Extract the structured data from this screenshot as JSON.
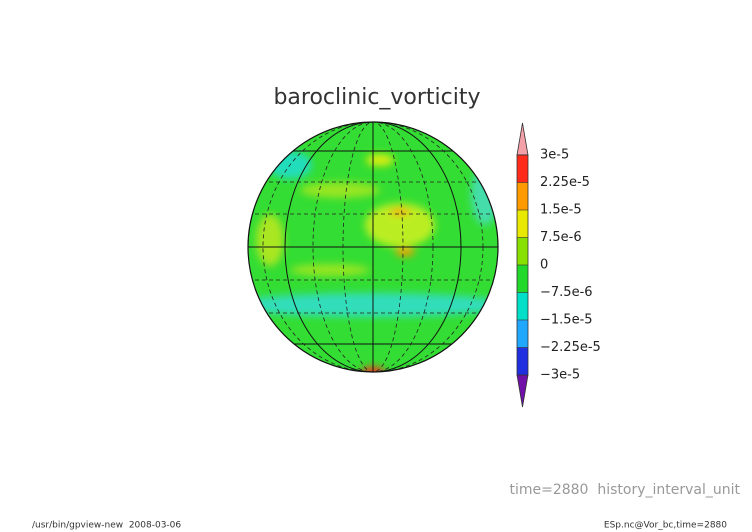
{
  "chart_data": {
    "type": "map",
    "title": "baroclinic_vorticity",
    "annotation": "time=2880  history_interval_unit",
    "footer_left": "/usr/bin/gpview-new  2008-03-06",
    "footer_right": "ESp.nc@Vor_bc,time=2880",
    "colorbar": {
      "ylim": [
        -3e-05,
        3e-05
      ],
      "yticks": [
        {
          "value": 3e-05,
          "label": "3e-5"
        },
        {
          "value": 2.25e-05,
          "label": "2.25e-5"
        },
        {
          "value": 1.5e-05,
          "label": "1.5e-5"
        },
        {
          "value": 7.5e-06,
          "label": "7.5e-6"
        },
        0,
        {
          "value": -7.5e-06,
          "label": "−7.5e-6"
        },
        {
          "value": -1.5e-05,
          "label": "−1.5e-5"
        },
        {
          "value": -2.25e-05,
          "label": "−2.25e-5"
        },
        {
          "value": -3e-05,
          "label": "−3e-5"
        }
      ],
      "colors": [
        "#ff2a1a",
        "#ff9a00",
        "#e8e800",
        "#88e000",
        "#22d82a",
        "#00e0c8",
        "#20a8ff",
        "#2030e0",
        "#4010b0"
      ],
      "extend_colors": [
        "#f4a0a8",
        "#7010a8"
      ]
    }
  }
}
